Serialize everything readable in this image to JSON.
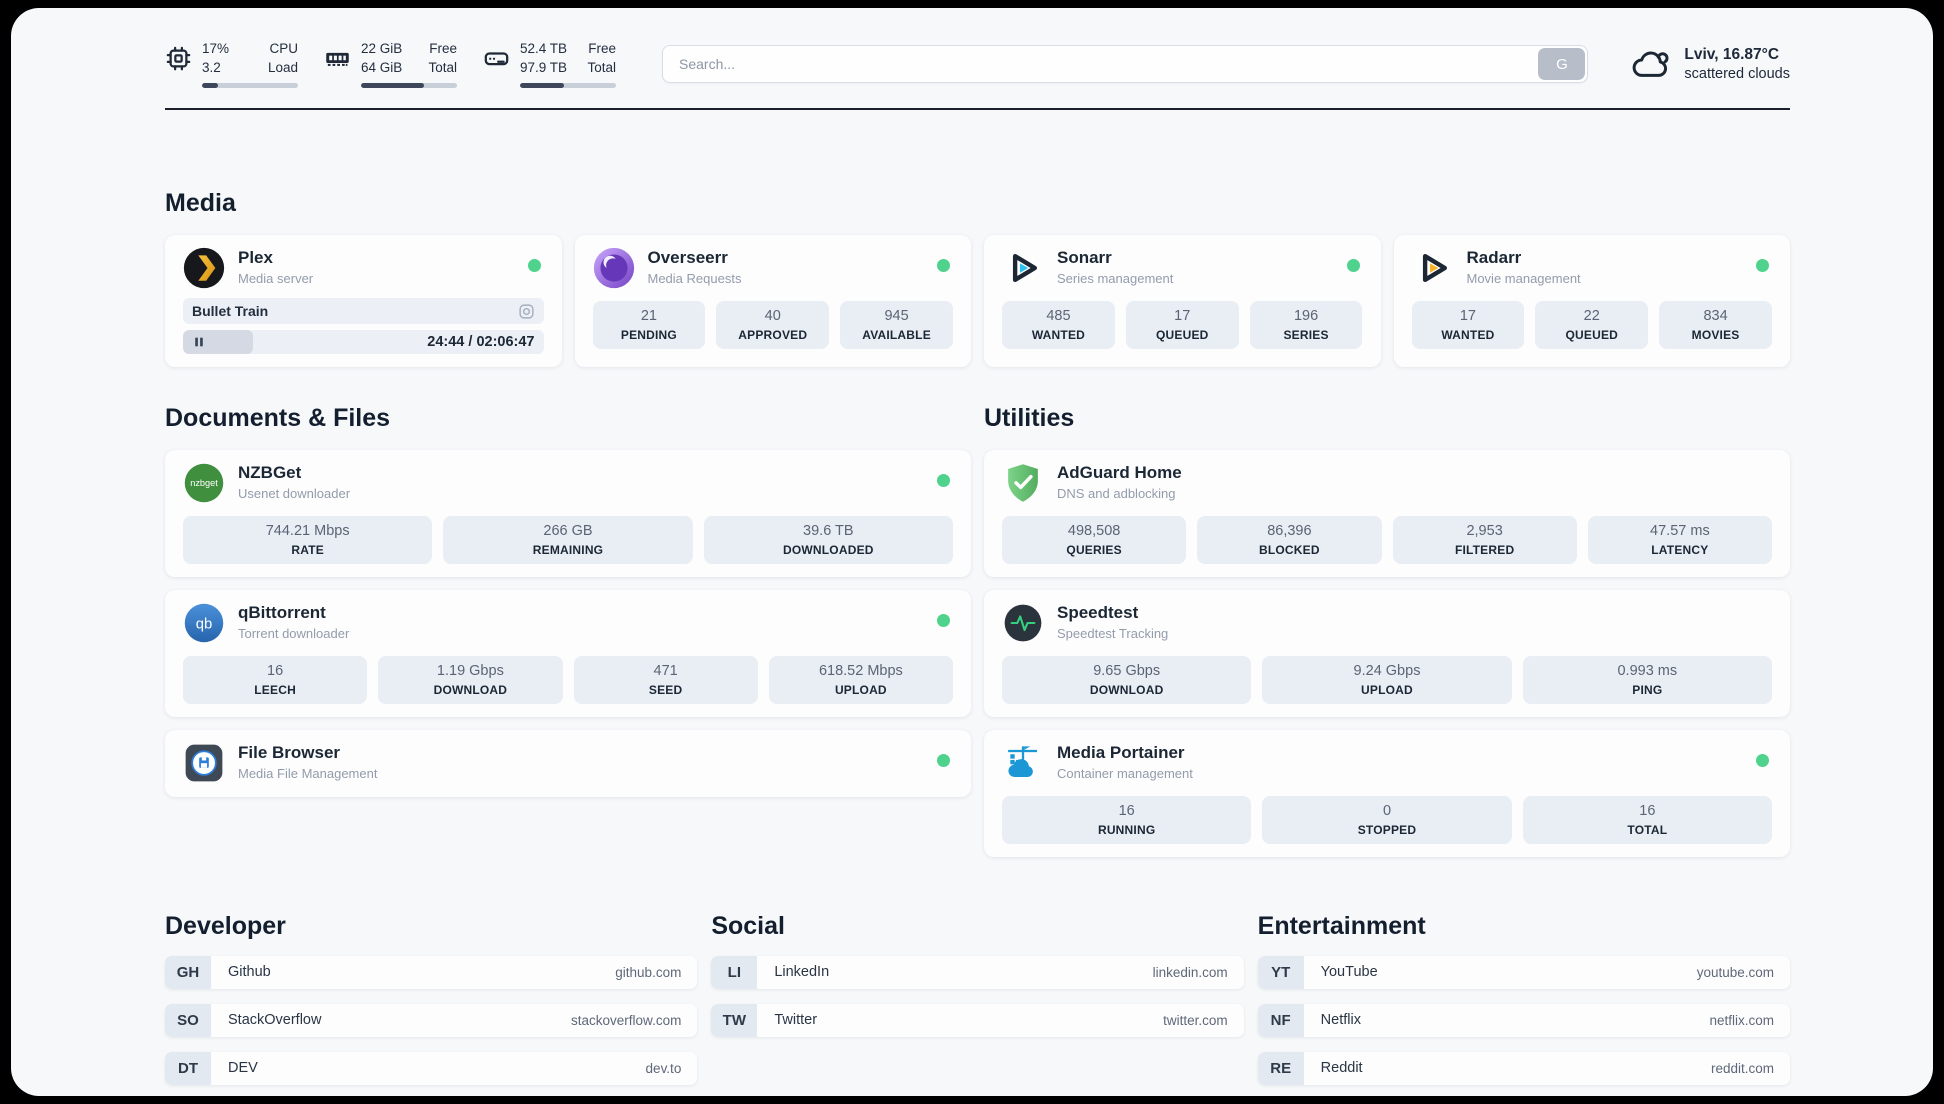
{
  "topbar": {
    "cpu": {
      "value_line1": "17%",
      "value_line2": "3.2",
      "label_line1": "CPU",
      "label_line2": "Load",
      "progress_pct": 17
    },
    "memory": {
      "value_line1": "22 GiB",
      "value_line2": "64 GiB",
      "label_line1": "Free",
      "label_line2": "Total",
      "progress_pct": 66
    },
    "disk": {
      "value_line1": "52.4 TB",
      "value_line2": "97.9 TB",
      "label_line1": "Free",
      "label_line2": "Total",
      "progress_pct": 46
    },
    "search": {
      "placeholder": "Search...",
      "engine_button_label": "G"
    },
    "weather": {
      "location_temperature": "Lviv, 16.87°C",
      "condition": "scattered clouds"
    }
  },
  "sections": {
    "media": "Media",
    "documents": "Documents & Files",
    "utilities": "Utilities",
    "developer": "Developer",
    "social": "Social",
    "entertainment": "Entertainment"
  },
  "apps": {
    "plex": {
      "name": "Plex",
      "description": "Media server",
      "status": "online",
      "now_playing": {
        "title": "Bullet Train",
        "time": "24:44 / 02:06:47",
        "progress_pct": 19.5
      }
    },
    "overseerr": {
      "name": "Overseerr",
      "description": "Media Requests",
      "status": "online",
      "stats": [
        {
          "value": "21",
          "label": "PENDING"
        },
        {
          "value": "40",
          "label": "APPROVED"
        },
        {
          "value": "945",
          "label": "AVAILABLE"
        }
      ]
    },
    "sonarr": {
      "name": "Sonarr",
      "description": "Series management",
      "status": "online",
      "stats": [
        {
          "value": "485",
          "label": "WANTED"
        },
        {
          "value": "17",
          "label": "QUEUED"
        },
        {
          "value": "196",
          "label": "SERIES"
        }
      ]
    },
    "radarr": {
      "name": "Radarr",
      "description": "Movie management",
      "status": "online",
      "stats": [
        {
          "value": "17",
          "label": "WANTED"
        },
        {
          "value": "22",
          "label": "QUEUED"
        },
        {
          "value": "834",
          "label": "MOVIES"
        }
      ]
    },
    "nzbget": {
      "name": "NZBGet",
      "description": "Usenet downloader",
      "status": "online",
      "stats": [
        {
          "value": "744.21 Mbps",
          "label": "RATE"
        },
        {
          "value": "266 GB",
          "label": "REMAINING"
        },
        {
          "value": "39.6 TB",
          "label": "DOWNLOADED"
        }
      ]
    },
    "qbittorrent": {
      "name": "qBittorrent",
      "description": "Torrent downloader",
      "status": "online",
      "stats": [
        {
          "value": "16",
          "label": "LEECH"
        },
        {
          "value": "1.19 Gbps",
          "label": "DOWNLOAD"
        },
        {
          "value": "471",
          "label": "SEED"
        },
        {
          "value": "618.52 Mbps",
          "label": "UPLOAD"
        }
      ]
    },
    "filebrowser": {
      "name": "File Browser",
      "description": "Media File Management",
      "status": "online"
    },
    "adguard": {
      "name": "AdGuard Home",
      "description": "DNS and adblocking",
      "stats": [
        {
          "value": "498,508",
          "label": "QUERIES"
        },
        {
          "value": "86,396",
          "label": "BLOCKED"
        },
        {
          "value": "2,953",
          "label": "FILTERED"
        },
        {
          "value": "47.57 ms",
          "label": "LATENCY"
        }
      ]
    },
    "speedtest": {
      "name": "Speedtest",
      "description": "Speedtest Tracking",
      "stats": [
        {
          "value": "9.65 Gbps",
          "label": "DOWNLOAD"
        },
        {
          "value": "9.24 Gbps",
          "label": "UPLOAD"
        },
        {
          "value": "0.993 ms",
          "label": "PING"
        }
      ]
    },
    "portainer": {
      "name": "Media Portainer",
      "description": "Container management",
      "status": "online",
      "stats": [
        {
          "value": "16",
          "label": "RUNNING"
        },
        {
          "value": "0",
          "label": "STOPPED"
        },
        {
          "value": "16",
          "label": "TOTAL"
        }
      ]
    }
  },
  "links": {
    "developer": [
      {
        "abbr": "GH",
        "name": "Github",
        "url": "github.com"
      },
      {
        "abbr": "SO",
        "name": "StackOverflow",
        "url": "stackoverflow.com"
      },
      {
        "abbr": "DT",
        "name": "DEV",
        "url": "dev.to"
      }
    ],
    "social": [
      {
        "abbr": "LI",
        "name": "LinkedIn",
        "url": "linkedin.com"
      },
      {
        "abbr": "TW",
        "name": "Twitter",
        "url": "twitter.com"
      }
    ],
    "entertainment": [
      {
        "abbr": "YT",
        "name": "YouTube",
        "url": "youtube.com"
      },
      {
        "abbr": "NF",
        "name": "Netflix",
        "url": "netflix.com"
      },
      {
        "abbr": "RE",
        "name": "Reddit",
        "url": "reddit.com"
      }
    ]
  },
  "colors": {
    "status_online": "#4fd28c",
    "text_dark": "#1b2734",
    "panel_background": "#f7f8fa",
    "stat_box_background": "#e9edf4"
  }
}
